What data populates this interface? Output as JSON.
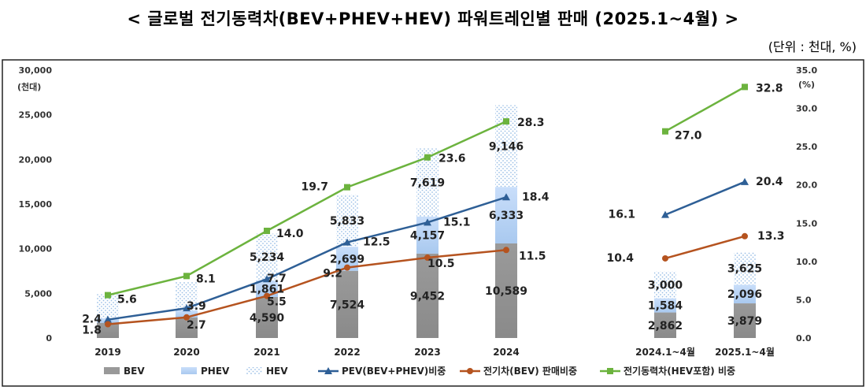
{
  "title": "< 글로벌 전기동력차(BEV+PHEV+HEV) 파워트레인별 판매 (2025.1~4월) >",
  "unit": "(단위 : 천대, %)",
  "chart_data": {
    "type": "bar",
    "stacked": true,
    "categories": [
      "2019",
      "2020",
      "2021",
      "2022",
      "2023",
      "2024",
      "2024.1~4월",
      "2025.1~4월"
    ],
    "y_left": {
      "label": "(천대)",
      "range": [
        0,
        30000
      ],
      "ticks": [
        "30,000",
        "25,000",
        "20,000",
        "15,000",
        "10,000",
        "5,000",
        "0"
      ]
    },
    "y_right": {
      "label": "(%)",
      "range": [
        0,
        35
      ],
      "ticks": [
        "35.0",
        "30.0",
        "25.0",
        "20.0",
        "15.0",
        "10.0",
        "5.0",
        "0.0"
      ]
    },
    "bar_series": [
      {
        "name": "BEV",
        "color": "#999999",
        "values": [
          1700,
          2300,
          4590,
          7524,
          9452,
          10589,
          2862,
          3879
        ],
        "labels": [
          "",
          "",
          "4,590",
          "7,524",
          "9,452",
          "10,589",
          "2,862",
          "3,879"
        ]
      },
      {
        "name": "PHEV",
        "color": "#b7d3f3",
        "values": [
          500,
          800,
          1861,
          2699,
          4157,
          6333,
          1584,
          2096
        ],
        "labels": [
          "",
          "",
          "1,861",
          "2,699",
          "4,157",
          "6,333",
          "1,584",
          "2,096"
        ]
      },
      {
        "name": "HEV",
        "color": "#dbe9f8",
        "values": [
          2700,
          3200,
          5234,
          5833,
          7619,
          9146,
          3000,
          3625
        ],
        "labels": [
          "",
          "",
          "5,234",
          "5,833",
          "7,619",
          "9,146",
          "3,000",
          "3,625"
        ]
      }
    ],
    "line_series": [
      {
        "name": "PEV(BEV+PHEV)비중",
        "color": "#2e5f96",
        "marker": "triangle",
        "values": [
          2.4,
          3.9,
          7.7,
          12.5,
          15.1,
          18.4,
          16.1,
          20.4
        ],
        "labels": [
          "2.4",
          "3.9",
          "7.7",
          "12.5",
          "15.1",
          "18.4",
          "16.1",
          "20.4"
        ]
      },
      {
        "name": "전기차(BEV) 판매비중",
        "color": "#b5531f",
        "marker": "circle",
        "values": [
          1.8,
          2.7,
          5.5,
          9.2,
          10.5,
          11.5,
          10.4,
          13.3
        ],
        "labels": [
          "1.8",
          "2.7",
          "5.5",
          "9.2",
          "10.5",
          "11.5",
          "10.4",
          "13.3"
        ]
      },
      {
        "name": "전기동력차(HEV포함) 비중",
        "color": "#6cb33e",
        "marker": "square",
        "values": [
          5.6,
          8.1,
          14.0,
          19.7,
          23.6,
          28.3,
          27.0,
          32.8
        ],
        "labels": [
          "5.6",
          "8.1",
          "14.0",
          "19.7",
          "23.6",
          "28.3",
          "27.0",
          "32.8"
        ]
      }
    ],
    "legend_position": "bottom"
  }
}
